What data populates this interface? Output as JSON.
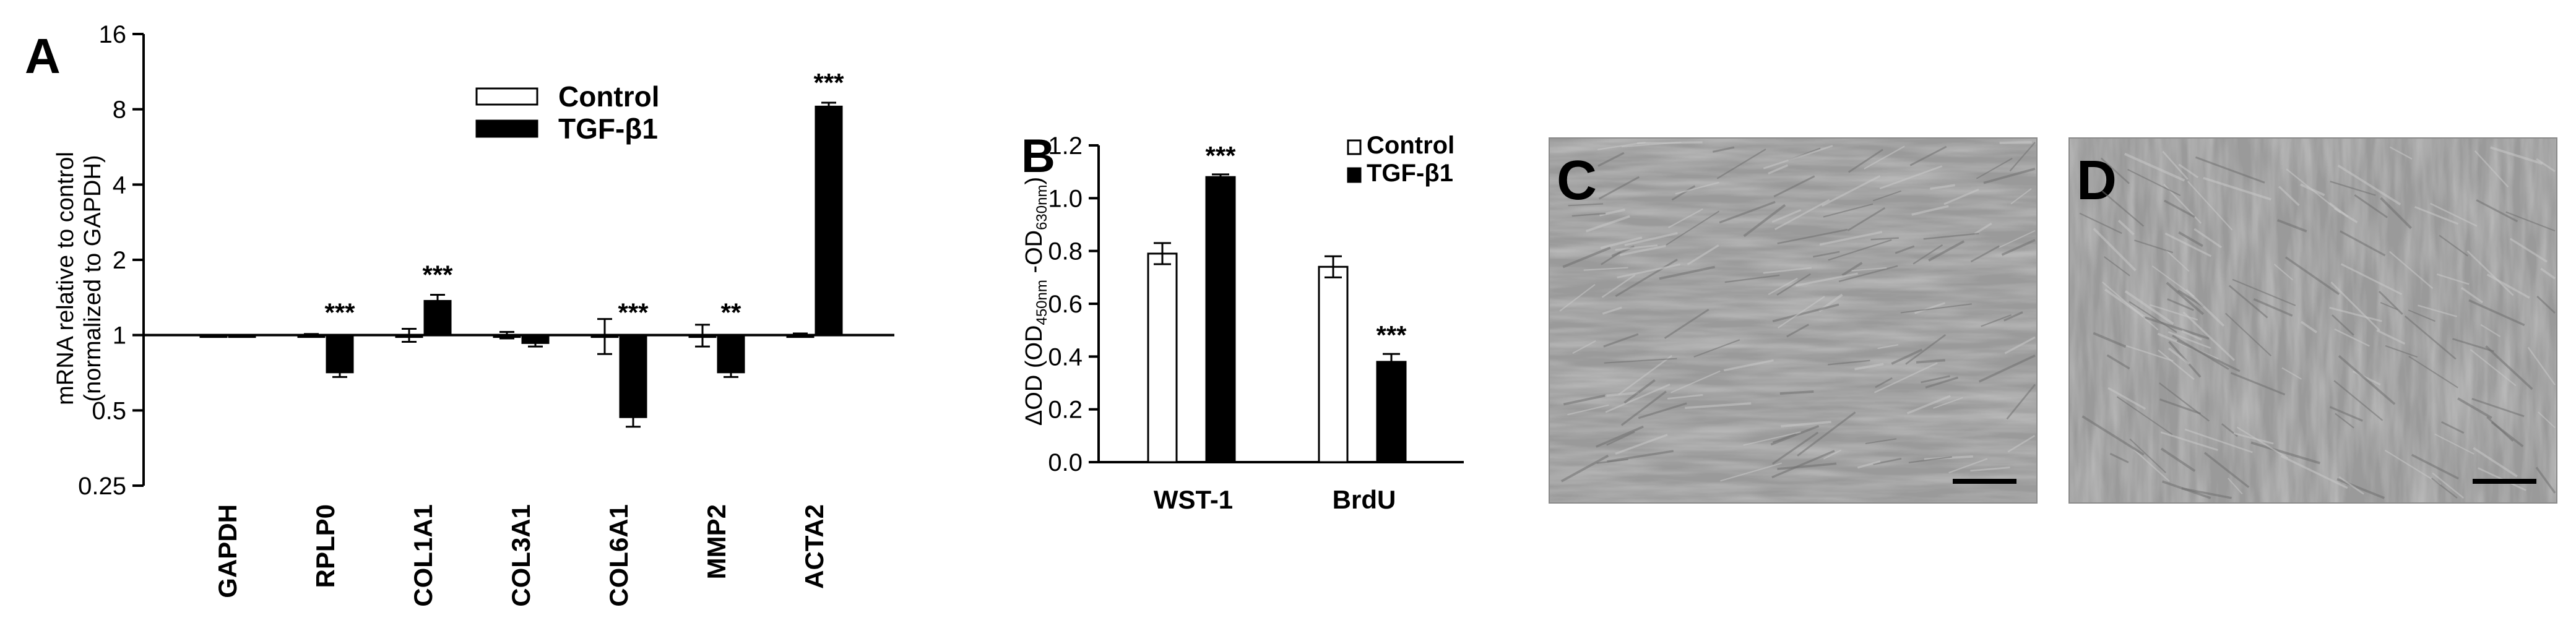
{
  "panels": {
    "A": "A",
    "B": "B",
    "C": "C",
    "D": "D"
  },
  "chart_data": [
    {
      "panel": "A",
      "type": "bar",
      "yscale": "log2",
      "ylim": [
        0.25,
        16
      ],
      "yticks": [
        0.25,
        0.5,
        1,
        2,
        4,
        8,
        16
      ],
      "ytick_labels": [
        "0.25",
        "0.5",
        "1",
        "2",
        "4",
        "8",
        "16"
      ],
      "ylabel_line1": "mRNA relative to control",
      "ylabel_line2": "(normalized to GAPDH)",
      "baseline": 1,
      "legend_position": "top-right",
      "categories": [
        "GAPDH",
        "RPLP0",
        "COL1A1",
        "COL3A1",
        "COL6A1",
        "MMP2",
        "ACTA2"
      ],
      "series": [
        {
          "name": "Control",
          "fill": "#ffffff",
          "values": [
            1.0,
            1.0,
            1.0,
            1.0,
            1.0,
            1.0,
            1.0
          ],
          "errors": [
            0.0,
            0.01,
            0.06,
            0.03,
            0.16,
            0.1,
            0.015
          ]
        },
        {
          "name": "TGF-β1",
          "fill": "#000000",
          "values": [
            1.0,
            0.71,
            1.37,
            0.93,
            0.47,
            0.71,
            8.2
          ],
          "errors": [
            0.0,
            0.03,
            0.08,
            0.03,
            0.04,
            0.03,
            0.3
          ]
        }
      ],
      "significance": [
        "",
        "***",
        "***",
        "",
        "***",
        "**",
        "***"
      ]
    },
    {
      "panel": "B",
      "type": "bar",
      "ylim": [
        0.0,
        1.2
      ],
      "yticks": [
        0.0,
        0.2,
        0.4,
        0.6,
        0.8,
        1.0,
        1.2
      ],
      "ytick_labels": [
        "0.0",
        "0.2",
        "0.4",
        "0.6",
        "0.8",
        "1.0",
        "1.2"
      ],
      "ylabel_parts": [
        "ΔOD (OD",
        "450nm",
        " -OD",
        "630nm",
        ")"
      ],
      "legend_position": "top-right",
      "categories": [
        "WST-1",
        "BrdU"
      ],
      "series": [
        {
          "name": "Control",
          "fill": "#ffffff",
          "values": [
            0.79,
            0.74
          ],
          "errors": [
            0.04,
            0.04
          ]
        },
        {
          "name": "TGF-β1",
          "fill": "#000000",
          "values": [
            1.08,
            0.38
          ],
          "errors": [
            0.01,
            0.03
          ]
        }
      ],
      "significance": [
        "***",
        "***"
      ]
    }
  ],
  "micrographs": [
    {
      "label": "C",
      "scale_bar": true
    },
    {
      "label": "D",
      "scale_bar": true
    }
  ],
  "colors": {
    "axis": "#000000",
    "photo_base": "#9a9a9a",
    "photo_light": "#c4c4c4",
    "photo_dark": "#6a6a6a"
  }
}
